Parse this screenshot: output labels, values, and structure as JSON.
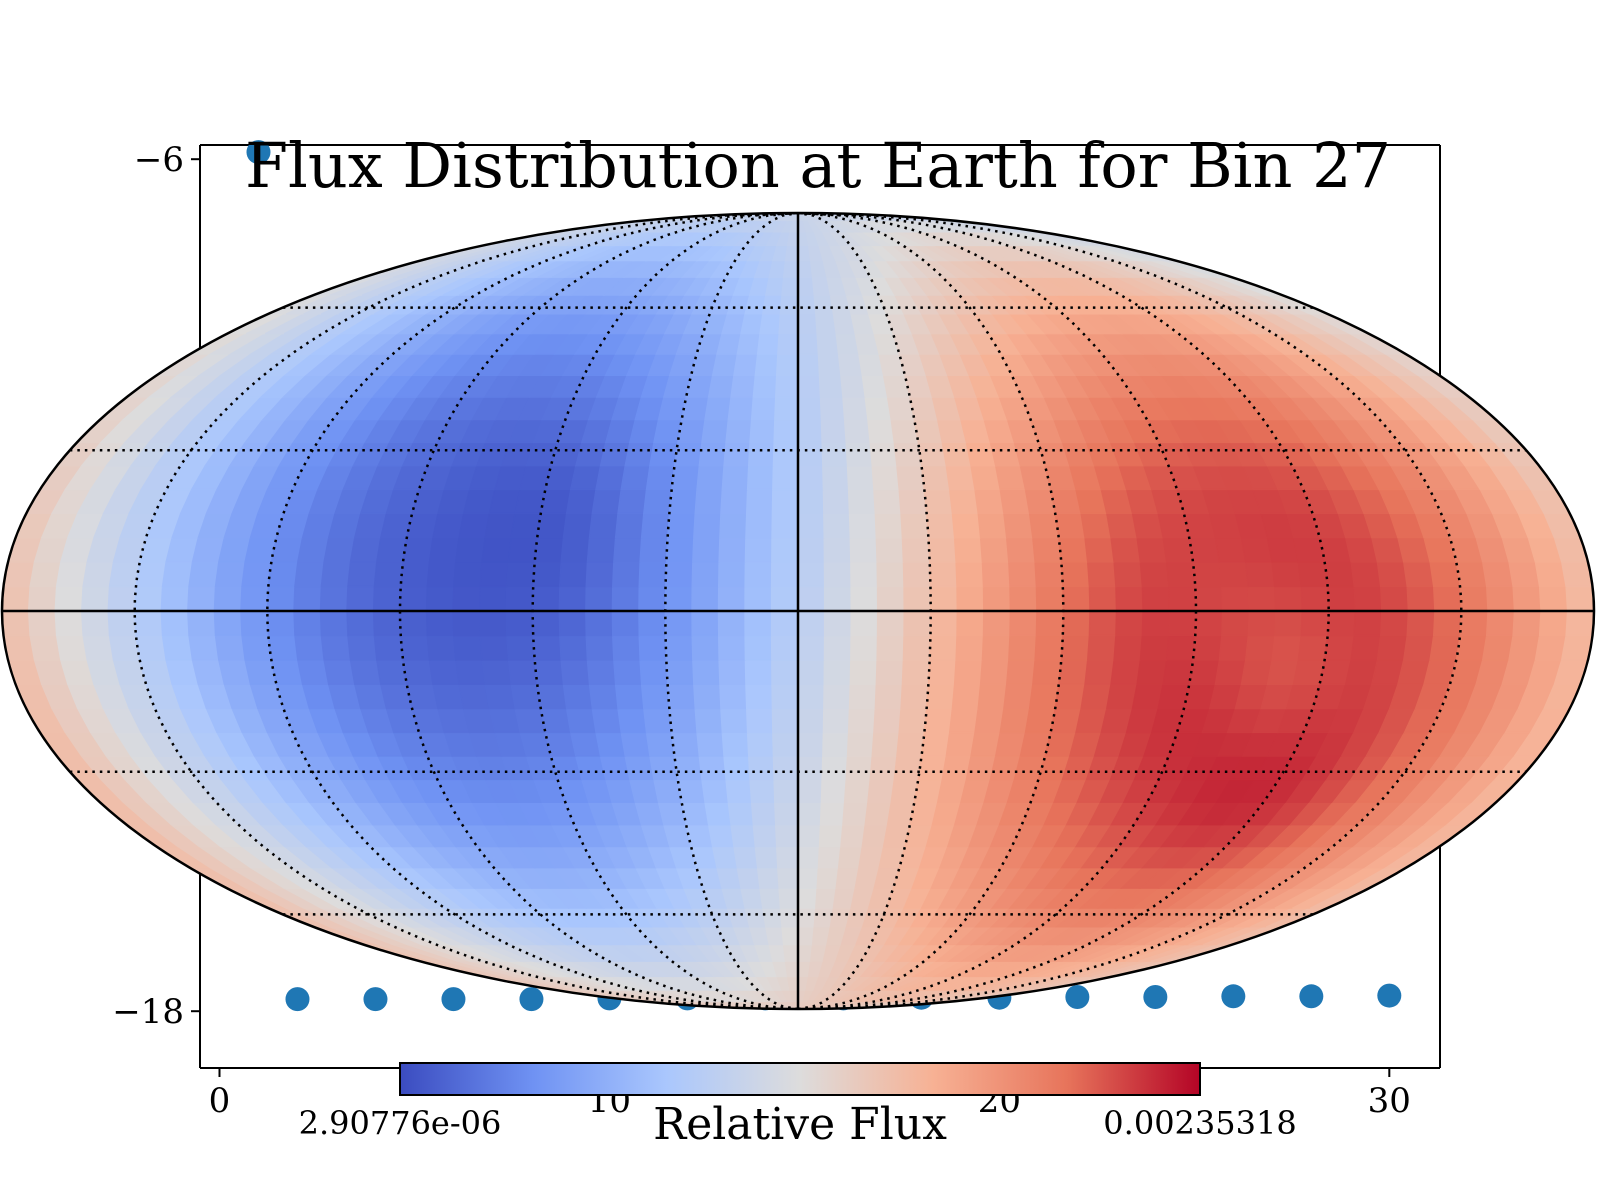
{
  "title": "Flux Distribution at Earth for Bin 27",
  "colorbar": {
    "label": "Relative Flux",
    "min_label": "2.90776e-06",
    "max_label": "0.00235318",
    "colormap": "coolwarm",
    "colors": [
      "#3b4cc0",
      "#6f92f3",
      "#aac7fd",
      "#dddcdc",
      "#f7b194",
      "#e7745b",
      "#b40426"
    ]
  },
  "colors": {
    "marker": "#1f77b4",
    "graticule": "#000000",
    "background": "#ffffff"
  },
  "chart_data": [
    {
      "type": "scatter",
      "title": "",
      "xlabel": "",
      "ylabel": "",
      "x_ticks": [
        "0",
        "10",
        "20",
        "30"
      ],
      "y_ticks": [
        "−6",
        "−18"
      ],
      "xlim": [
        -0.5,
        31.3
      ],
      "ylim": [
        -18.8,
        -5.8
      ],
      "series": [
        {
          "x": [
            1,
            2,
            4,
            6,
            8,
            10,
            12,
            14,
            16,
            18,
            20,
            22,
            24,
            26,
            28,
            30
          ],
          "y": [
            -5.9,
            -17.83,
            -17.83,
            -17.83,
            -17.83,
            -17.82,
            -17.82,
            -17.82,
            -17.82,
            -17.81,
            -17.81,
            -17.8,
            -17.8,
            -17.79,
            -17.79,
            -17.78
          ]
        }
      ]
    },
    {
      "type": "heatmap",
      "projection": "mollweide",
      "graticule": true,
      "hotspots": [
        {
          "lon_deg": 114,
          "lat_deg": -30,
          "value": 1.0
        },
        {
          "lon_deg": 95,
          "lat_deg": 3,
          "value": 0.88
        },
        {
          "lon_deg": 112,
          "lat_deg": -10,
          "value": 0.82
        },
        {
          "lon_deg": -60,
          "lat_deg": 15,
          "value": 0.0
        }
      ],
      "colorbar_range": [
        2.90776e-06,
        0.00235318
      ]
    }
  ]
}
